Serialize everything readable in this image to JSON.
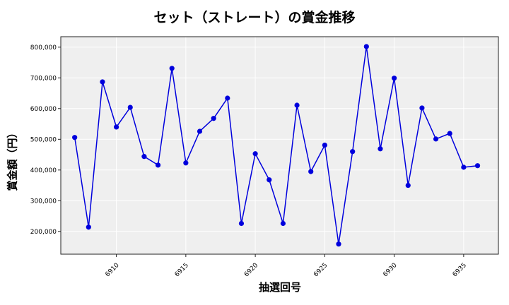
{
  "chart_data": {
    "type": "line",
    "title": "セット（ストレート）の賞金推移",
    "xlabel": "抽選回号",
    "ylabel": "賞金額（円）",
    "x": [
      6907,
      6908,
      6909,
      6910,
      6911,
      6912,
      6913,
      6914,
      6915,
      6916,
      6917,
      6918,
      6919,
      6920,
      6921,
      6922,
      6923,
      6924,
      6925,
      6926,
      6927,
      6928,
      6929,
      6930,
      6931,
      6932,
      6933,
      6934,
      6935,
      6936
    ],
    "series": [
      {
        "name": "賞金額",
        "color": "#0000dd",
        "marker": "circle",
        "values": [
          506000,
          214000,
          687000,
          540000,
          604000,
          444000,
          416000,
          731000,
          423000,
          526000,
          568000,
          634000,
          226000,
          453000,
          368000,
          226000,
          611000,
          395000,
          481000,
          159000,
          460000,
          802000,
          469000,
          699000,
          350000,
          602000,
          501000,
          519000,
          409000,
          414000
        ]
      }
    ],
    "xticks": [
      6910,
      6915,
      6920,
      6925,
      6930,
      6935
    ],
    "xtick_labels": [
      "6910",
      "6915",
      "6920",
      "6925",
      "6930",
      "6935"
    ],
    "yticks": [
      200000,
      300000,
      400000,
      500000,
      600000,
      700000,
      800000
    ],
    "ytick_labels": [
      "200,000",
      "300,000",
      "400,000",
      "500,000",
      "600,000",
      "700,000",
      "800,000"
    ],
    "xlim": [
      6906,
      6937.5
    ],
    "ylim": [
      126000,
      834000
    ],
    "grid": true,
    "legend": null,
    "background": "#efefef"
  }
}
